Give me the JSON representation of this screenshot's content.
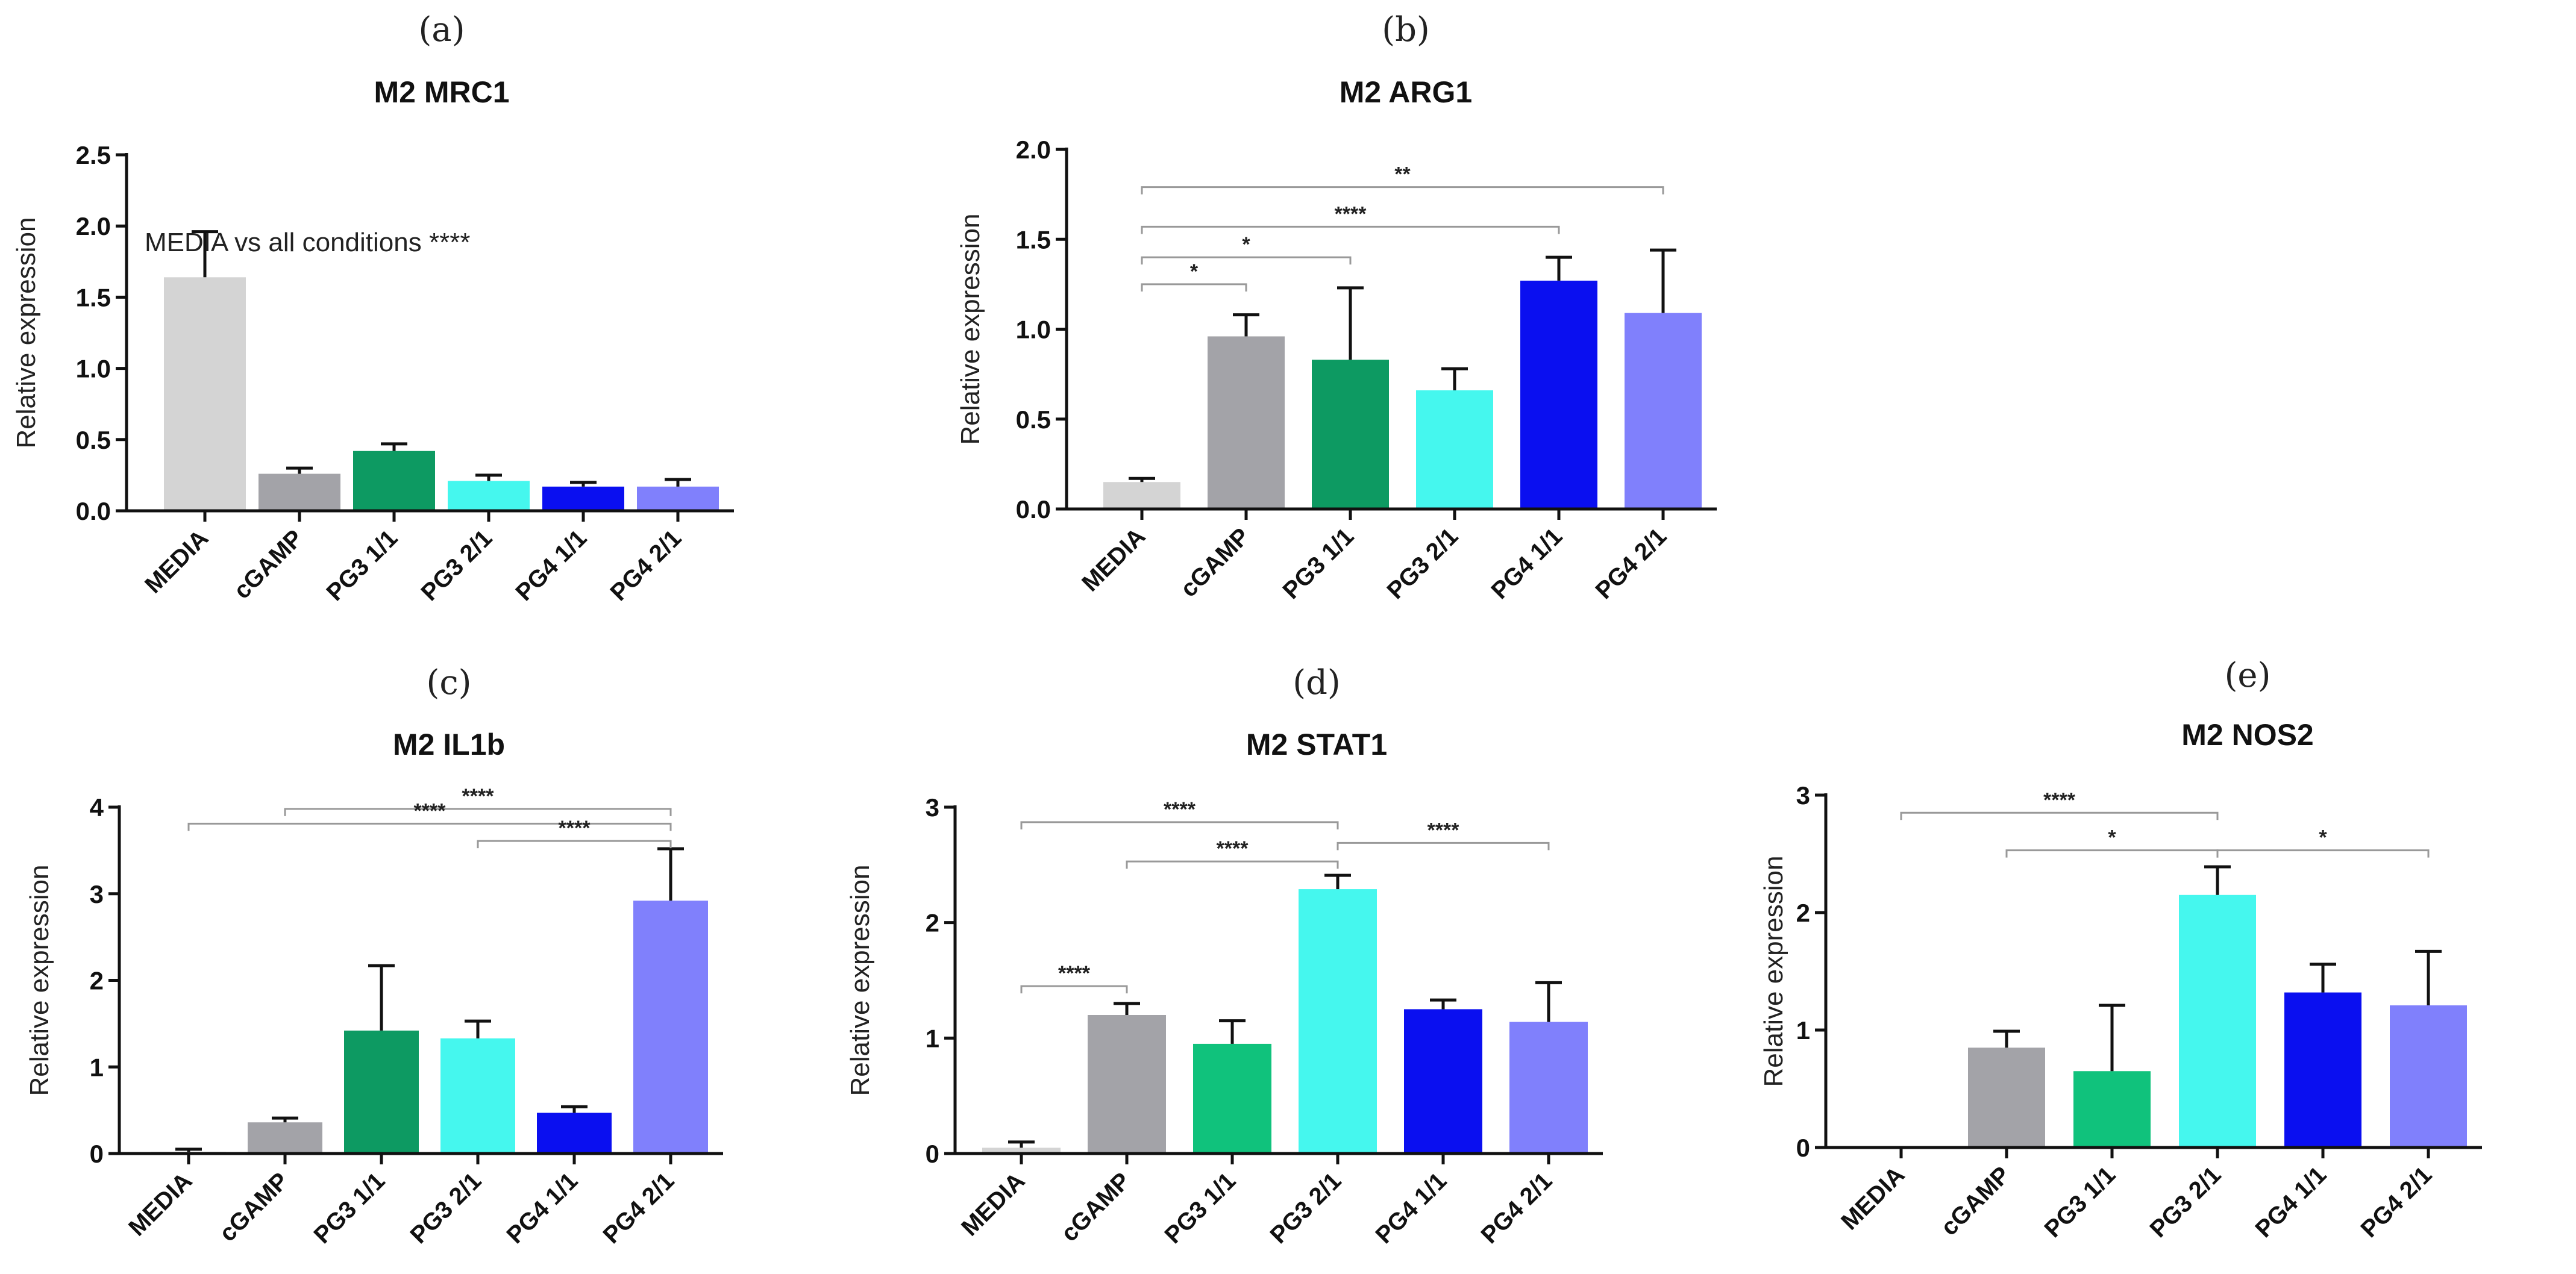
{
  "chart_data": [
    {
      "panel": "(a)",
      "type": "bar",
      "title": "M2 MRC1",
      "xlabel": "",
      "ylabel": "Relative expression",
      "ylim": [
        0,
        2.5
      ],
      "yticks": [
        "0.0",
        "0.5",
        "1.0",
        "1.5",
        "2.0",
        "2.5"
      ],
      "categories": [
        "MEDIA",
        "cGAMP",
        "PG3 1/1",
        "PG3 2/1",
        "PG4 1/1",
        "PG4 2/1"
      ],
      "values": [
        1.64,
        0.26,
        0.42,
        0.21,
        0.17,
        0.17
      ],
      "errors": [
        0.32,
        0.04,
        0.05,
        0.04,
        0.03,
        0.05
      ],
      "colors": [
        "#d4d4d4",
        "#a3a3a8",
        "#0d9a62",
        "#45f7ee",
        "#0a0ff0",
        "#8080fc"
      ],
      "annotation": "MEDIA vs all conditions ****",
      "significance": []
    },
    {
      "panel": "(b)",
      "type": "bar",
      "title": "M2 ARG1",
      "xlabel": "",
      "ylabel": "Relative expression",
      "ylim": [
        0,
        2.0
      ],
      "yticks": [
        "0.0",
        "0.5",
        "1.0",
        "1.5",
        "2.0"
      ],
      "categories": [
        "MEDIA",
        "cGAMP",
        "PG3 1/1",
        "PG3 2/1",
        "PG4 1/1",
        "PG4 2/1"
      ],
      "values": [
        0.15,
        0.96,
        0.83,
        0.66,
        1.27,
        1.09
      ],
      "errors": [
        0.02,
        0.12,
        0.4,
        0.12,
        0.13,
        0.35
      ],
      "colors": [
        "#d4d4d4",
        "#a3a3a8",
        "#0d9a62",
        "#45f7ee",
        "#0a0ff0",
        "#8080fc"
      ],
      "annotation": "",
      "significance": [
        {
          "from": 0,
          "to": 5,
          "level": 1.79,
          "label": "**"
        },
        {
          "from": 0,
          "to": 4,
          "level": 1.57,
          "label": "****"
        },
        {
          "from": 0,
          "to": 2,
          "level": 1.4,
          "label": "*"
        },
        {
          "from": 0,
          "to": 1,
          "level": 1.25,
          "label": "*"
        }
      ]
    },
    {
      "panel": "(c)",
      "type": "bar",
      "title": "M2 IL1b",
      "xlabel": "",
      "ylabel": "Relative expression",
      "ylim": [
        0,
        4
      ],
      "yticks": [
        "0",
        "1",
        "2",
        "3",
        "4"
      ],
      "categories": [
        "MEDIA",
        "cGAMP",
        "PG3 1/1",
        "PG3 2/1",
        "PG4 1/1",
        "PG4 2/1"
      ],
      "values": [
        0.02,
        0.36,
        1.42,
        1.33,
        0.47,
        2.92
      ],
      "errors": [
        0.03,
        0.05,
        0.75,
        0.2,
        0.07,
        0.6
      ],
      "colors": [
        "#d4d4d4",
        "#a3a3a8",
        "#0d9a62",
        "#45f7ee",
        "#0a0ff0",
        "#8080fc"
      ],
      "annotation": "",
      "significance": [
        {
          "from": 1,
          "to": 5,
          "level": 3.98,
          "label": "****"
        },
        {
          "from": 0,
          "to": 5,
          "level": 3.81,
          "label": "****"
        },
        {
          "from": 3,
          "to": 5,
          "level": 3.61,
          "label": "****"
        }
      ]
    },
    {
      "panel": "(d)",
      "type": "bar",
      "title": "M2 STAT1",
      "xlabel": "",
      "ylabel": "Relative expression",
      "ylim": [
        0,
        3
      ],
      "yticks": [
        "0",
        "1",
        "2",
        "3"
      ],
      "categories": [
        "MEDIA",
        "cGAMP",
        "PG3 1/1",
        "PG3 2/1",
        "PG4 1/1",
        "PG4 2/1"
      ],
      "values": [
        0.05,
        1.2,
        0.95,
        2.29,
        1.25,
        1.14
      ],
      "errors": [
        0.05,
        0.1,
        0.2,
        0.12,
        0.08,
        0.34
      ],
      "colors": [
        "#d4d4d4",
        "#a3a3a8",
        "#10c27c",
        "#45f7ee",
        "#0a0ff0",
        "#8080fc"
      ],
      "annotation": "",
      "significance": [
        {
          "from": 0,
          "to": 3,
          "level": 2.87,
          "label": "****"
        },
        {
          "from": 3,
          "to": 5,
          "level": 2.69,
          "label": "****"
        },
        {
          "from": 1,
          "to": 3,
          "level": 2.53,
          "label": "****"
        },
        {
          "from": 0,
          "to": 1,
          "level": 1.45,
          "label": "****"
        }
      ]
    },
    {
      "panel": "(e)",
      "type": "bar",
      "title": "M2 NOS2",
      "xlabel": "",
      "ylabel": "Relative expression",
      "ylim": [
        0,
        3
      ],
      "yticks": [
        "0",
        "1",
        "2",
        "3"
      ],
      "categories": [
        "MEDIA",
        "cGAMP",
        "PG3 1/1",
        "PG3 2/1",
        "PG4 1/1",
        "PG4 2/1"
      ],
      "values": [
        0.0,
        0.85,
        0.65,
        2.15,
        1.32,
        1.21
      ],
      "errors": [
        0.0,
        0.14,
        0.56,
        0.24,
        0.24,
        0.46
      ],
      "colors": [
        "#d4d4d4",
        "#a3a3a8",
        "#10c27c",
        "#45f7ee",
        "#0a0ff0",
        "#8080fc"
      ],
      "annotation": "",
      "significance": [
        {
          "from": 0,
          "to": 3,
          "level": 2.85,
          "label": "****"
        },
        {
          "from": 1,
          "to": 3,
          "level": 2.53,
          "label": "*"
        },
        {
          "from": 3,
          "to": 5,
          "level": 2.53,
          "label": "*"
        }
      ]
    }
  ]
}
